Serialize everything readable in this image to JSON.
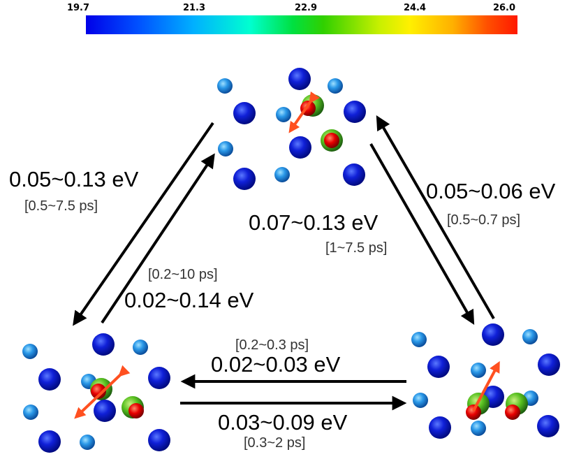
{
  "colorbar": {
    "ticks": [
      "19.7",
      "21.3",
      "22.9",
      "24.4",
      "26.0"
    ],
    "colors": [
      "#0000e8",
      "#00ffd0",
      "#30d000",
      "#fff000",
      "#ff1800"
    ]
  },
  "transitions": {
    "top_to_left": {
      "energy": "0.05~0.13 eV",
      "time": "[0.5~7.5 ps]"
    },
    "left_to_top": {
      "energy": "0.02~0.14 eV",
      "time": "[0.2~10 ps]"
    },
    "top_to_right": {
      "energy": "0.07~0.13 eV",
      "time": "[1~7.5 ps]"
    },
    "right_to_top": {
      "energy": "0.05~0.06 eV",
      "time": "[0.5~0.7 ps]"
    },
    "right_to_left": {
      "energy": "0.02~0.03 eV",
      "time": "[0.2~0.3 ps]"
    },
    "left_to_right": {
      "energy": "0.03~0.09 eV",
      "time": "[0.3~2 ps]"
    }
  },
  "atom_colors": {
    "large_atom": "#0a14c8",
    "small_atom": "#1e8ee0",
    "green_shell": "#58c020",
    "red_core": "#e80000",
    "arrow": "#ff5020"
  }
}
